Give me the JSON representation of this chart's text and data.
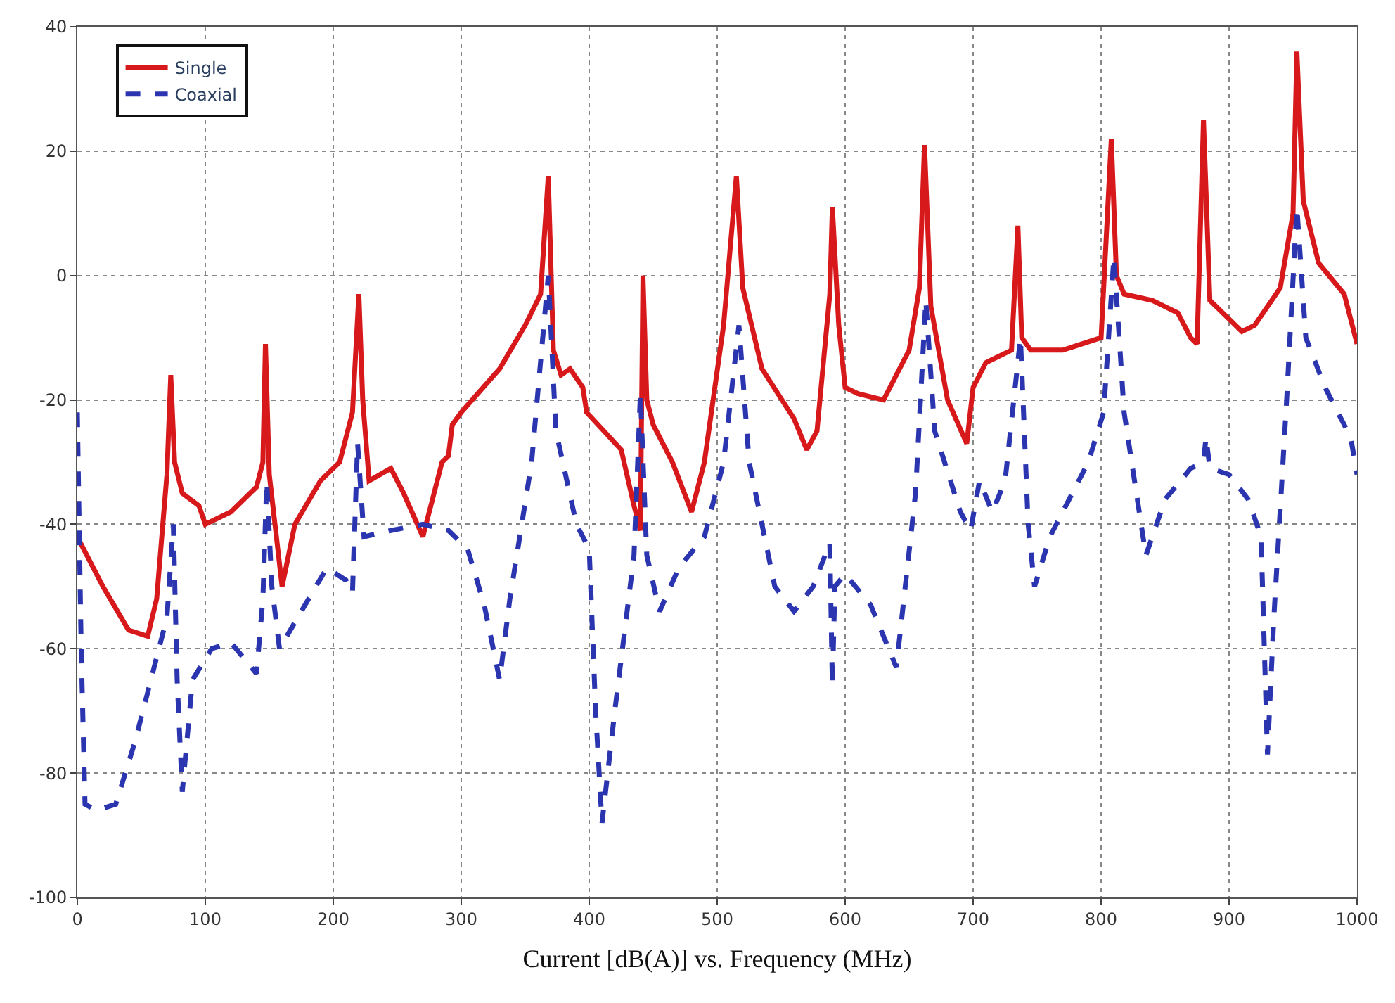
{
  "chart_data": {
    "type": "line",
    "xlabel": "Current [dB(A)] vs. Frequency (MHz)",
    "xlim": [
      0,
      1000
    ],
    "xticks": [
      0,
      100,
      200,
      300,
      400,
      500,
      600,
      700,
      800,
      900,
      1000
    ],
    "ylim": [
      -100,
      40
    ],
    "yticks": [
      -100,
      -80,
      -60,
      -40,
      -20,
      0,
      20,
      40
    ],
    "grid": true,
    "legend": "top left",
    "series": [
      {
        "name": "Single",
        "color": "#d7191c",
        "line_style": "solid",
        "x": [
          0,
          5,
          20,
          40,
          55,
          62,
          70,
          73,
          76,
          82,
          95,
          100,
          120,
          140,
          145,
          147,
          150,
          160,
          170,
          190,
          205,
          215,
          220,
          223,
          228,
          245,
          255,
          270,
          285,
          290,
          293,
          300,
          330,
          350,
          362,
          368,
          372,
          378,
          385,
          395,
          398,
          425,
          435,
          440,
          442,
          445,
          450,
          465,
          480,
          490,
          505,
          515,
          520,
          535,
          560,
          570,
          578,
          588,
          590,
          595,
          600,
          610,
          630,
          650,
          658,
          662,
          667,
          680,
          695,
          700,
          710,
          730,
          735,
          738,
          745,
          770,
          800,
          808,
          812,
          818,
          840,
          860,
          870,
          875,
          880,
          885,
          895,
          910,
          920,
          940,
          950,
          953,
          958,
          970,
          990,
          1000
        ],
        "values": [
          -42,
          -44,
          -50,
          -57,
          -58,
          -52,
          -32,
          -16,
          -30,
          -35,
          -37,
          -40,
          -38,
          -34,
          -30,
          -11,
          -32,
          -50,
          -40,
          -33,
          -30,
          -22,
          -3,
          -20,
          -33,
          -31,
          -35,
          -42,
          -30,
          -29,
          -24,
          -22,
          -15,
          -8,
          -3,
          16,
          -12,
          -16,
          -15,
          -18,
          -22,
          -28,
          -37,
          -41,
          0,
          -20,
          -24,
          -30,
          -38,
          -30,
          -8,
          16,
          -2,
          -15,
          -23,
          -28,
          -25,
          -3,
          11,
          -8,
          -18,
          -19,
          -20,
          -12,
          -2,
          21,
          -5,
          -20,
          -27,
          -18,
          -14,
          -12,
          8,
          -10,
          -12,
          -12,
          -10,
          22,
          0,
          -3,
          -4,
          -6,
          -10,
          -11,
          25,
          -4,
          -6,
          -9,
          -8,
          -2,
          10,
          36,
          12,
          2,
          -3,
          -11
        ]
      },
      {
        "name": "Coaxial",
        "color": "#2b35b0",
        "line_style": "dashed",
        "x": [
          0,
          3,
          6,
          15,
          30,
          45,
          60,
          70,
          75,
          78,
          82,
          90,
          105,
          120,
          140,
          145,
          148,
          152,
          158,
          175,
          195,
          210,
          215,
          219,
          224,
          245,
          270,
          290,
          305,
          318,
          330,
          338,
          355,
          368,
          374,
          390,
          400,
          405,
          410,
          420,
          435,
          440,
          445,
          455,
          470,
          490,
          505,
          517,
          525,
          545,
          560,
          575,
          588,
          590,
          592,
          600,
          620,
          640,
          655,
          663,
          670,
          690,
          698,
          705,
          715,
          725,
          737,
          743,
          748,
          760,
          790,
          802,
          810,
          818,
          835,
          850,
          870,
          880,
          882,
          885,
          900,
          915,
          925,
          930,
          935,
          945,
          953,
          960,
          975,
          995,
          1000
        ],
        "values": [
          -22,
          -60,
          -85,
          -86,
          -85,
          -75,
          -63,
          -55,
          -40,
          -65,
          -83,
          -65,
          -60,
          -59,
          -64,
          -52,
          -33,
          -50,
          -60,
          -54,
          -47,
          -49,
          -51,
          -27,
          -42,
          -41,
          -40,
          -41,
          -44,
          -53,
          -65,
          -52,
          -30,
          0,
          -25,
          -40,
          -44,
          -70,
          -88,
          -70,
          -45,
          -19,
          -45,
          -54,
          -47,
          -42,
          -30,
          -8,
          -30,
          -50,
          -54,
          -50,
          -43,
          -66,
          -50,
          -48,
          -53,
          -63,
          -35,
          -4,
          -25,
          -38,
          -41,
          -33,
          -38,
          -33,
          -10,
          -40,
          -50,
          -42,
          -30,
          -22,
          3,
          -22,
          -45,
          -36,
          -31,
          -30,
          -26,
          -31,
          -32,
          -36,
          -42,
          -77,
          -55,
          -20,
          11,
          -10,
          -18,
          -26,
          -32
        ]
      }
    ]
  }
}
